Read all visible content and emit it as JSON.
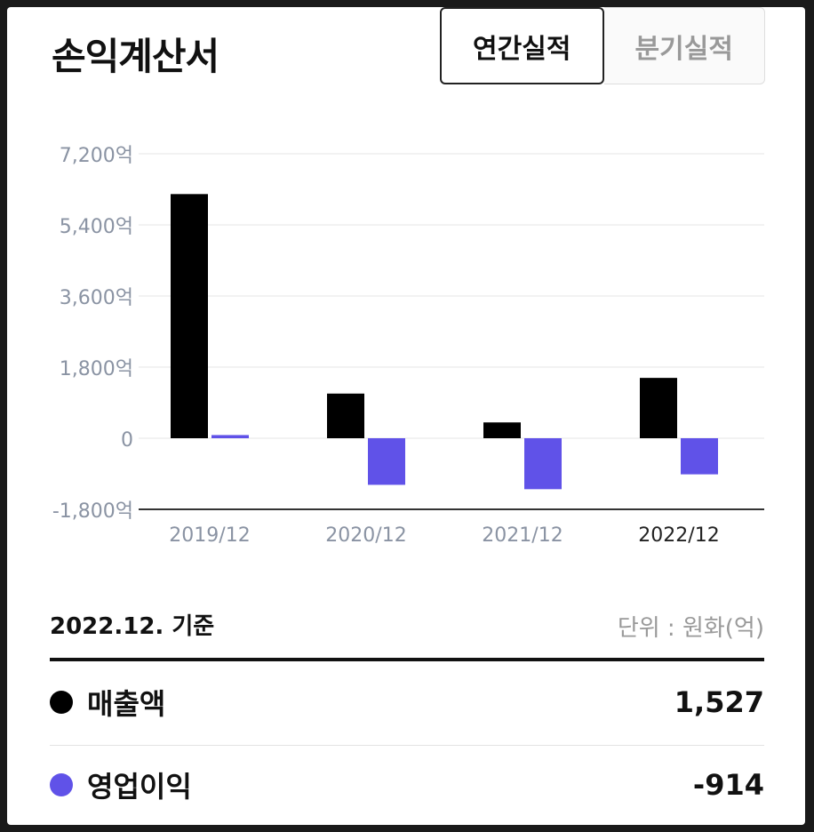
{
  "header": {
    "title": "손익계산서",
    "tab_annual": "연간실적",
    "tab_quarterly": "분기실적"
  },
  "footer": {
    "basis": "2022.12. 기준",
    "unit": "단위 : 원화(억)"
  },
  "legend": [
    {
      "name": "매출액",
      "value": "1,527",
      "color": "#000000"
    },
    {
      "name": "영업이익",
      "value": "-914",
      "color": "#6052e8"
    }
  ],
  "chart_data": {
    "type": "bar",
    "categories": [
      "2019/12",
      "2020/12",
      "2021/12",
      "2022/12"
    ],
    "highlight_category": "2022/12",
    "series": [
      {
        "name": "매출액",
        "color": "#000000",
        "values": [
          6180,
          1130,
          400,
          1527
        ]
      },
      {
        "name": "영업이익",
        "color": "#6052e8",
        "values": [
          80,
          -1180,
          -1290,
          -914
        ]
      }
    ],
    "yticks": [
      "7,200억",
      "5,400억",
      "3,600억",
      "1,800억",
      "0",
      "-1,800억"
    ],
    "ytick_values": [
      7200,
      5400,
      3600,
      1800,
      0,
      -1800
    ],
    "ylim": [
      -1800,
      7200
    ],
    "grid": true
  }
}
